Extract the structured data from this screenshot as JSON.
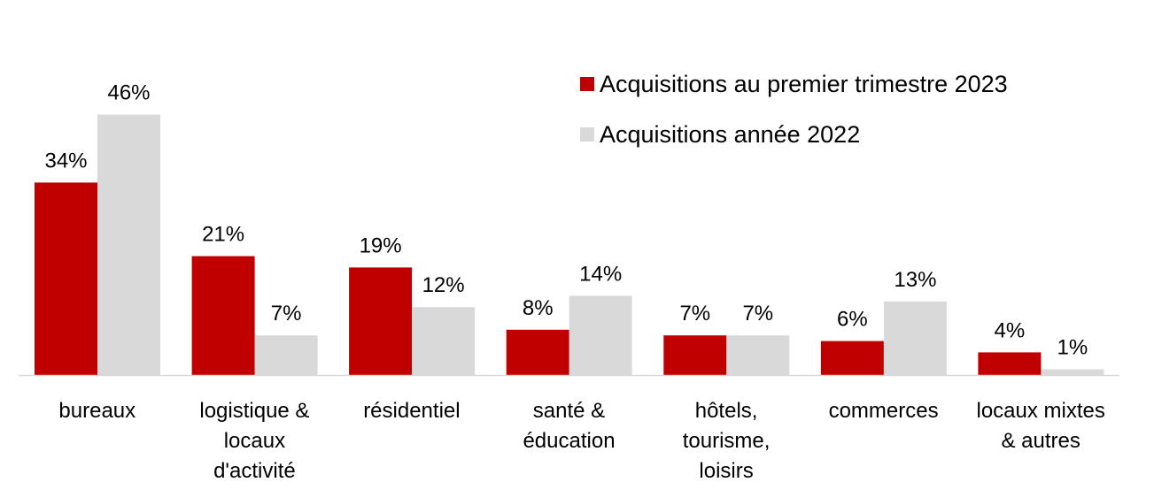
{
  "chart_data": {
    "type": "bar",
    "title": "",
    "xlabel": "",
    "ylabel": "",
    "ylim": [
      0,
      50
    ],
    "grid": false,
    "legend_position": "top-right",
    "categories": [
      [
        "bureaux"
      ],
      [
        "logistique &",
        "locaux",
        "d'activité"
      ],
      [
        "résidentiel"
      ],
      [
        "santé &",
        "éducation"
      ],
      [
        "hôtels,",
        "tourisme,",
        "loisirs"
      ],
      [
        "commerces"
      ],
      [
        "locaux mixtes",
        "& autres"
      ]
    ],
    "series": [
      {
        "name": "Acquisitions au premier trimestre 2023",
        "color": "#C00000",
        "values": [
          34,
          21,
          19,
          8,
          7,
          6,
          4
        ],
        "labels": [
          "34%",
          "21%",
          "19%",
          "8%",
          "7%",
          "6%",
          "4%"
        ]
      },
      {
        "name": "Acquisitions année 2022",
        "color": "#D9D9D9",
        "values": [
          46,
          7,
          12,
          14,
          7,
          13,
          1
        ],
        "labels": [
          "46%",
          "7%",
          "12%",
          "14%",
          "7%",
          "13%",
          "1%"
        ]
      }
    ],
    "axis_color": "#D9D9D9"
  }
}
